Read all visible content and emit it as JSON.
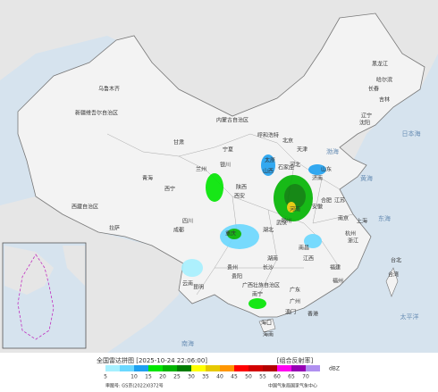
{
  "legend": {
    "title": "全国雷达拼图 [2025-10-24 22:06:00]",
    "product": "[组合反射率]",
    "unit": "dBZ",
    "scale": [
      5,
      10,
      15,
      20,
      25,
      30,
      35,
      40,
      45,
      50,
      55,
      60,
      65,
      70
    ],
    "colors": [
      "#a6f0ff",
      "#6ad8ff",
      "#1ea0f0",
      "#00e600",
      "#00b400",
      "#007d00",
      "#ffff00",
      "#e6c800",
      "#ff9600",
      "#ff0000",
      "#d20000",
      "#b40000",
      "#ff00f0",
      "#9600b4",
      "#b090f0"
    ],
    "review_no": "审图号: GS京(2022)0372号",
    "issuer": "中国气象局国家气象中心"
  },
  "map_labels": [
    "乌鲁木齐",
    "新疆维吾尔自治区",
    "西藏自治区",
    "拉萨",
    "青海",
    "西宁",
    "甘肃",
    "兰州",
    "宁夏",
    "银川",
    "内蒙古自治区",
    "呼和浩特",
    "黑龙江",
    "哈尔滨",
    "吉林",
    "长春",
    "辽宁",
    "沈阳",
    "北京",
    "天津",
    "河北",
    "石家庄",
    "山西",
    "太原",
    "山东",
    "济南",
    "陕西",
    "西安",
    "河南",
    "郑州",
    "四川",
    "成都",
    "重庆",
    "湖北",
    "武汉",
    "安徽",
    "合肥",
    "江苏",
    "南京",
    "上海",
    "浙江",
    "杭州",
    "贵州",
    "贵阳",
    "湖南",
    "长沙",
    "江西",
    "南昌",
    "福建",
    "福州",
    "台湾",
    "台北",
    "云南",
    "昆明",
    "广西壮族自治区",
    "南宁",
    "广东",
    "广州",
    "香港",
    "澳门",
    "海南",
    "海口",
    "渤海",
    "黄海",
    "东海",
    "日本海",
    "太平洋",
    "南海"
  ]
}
